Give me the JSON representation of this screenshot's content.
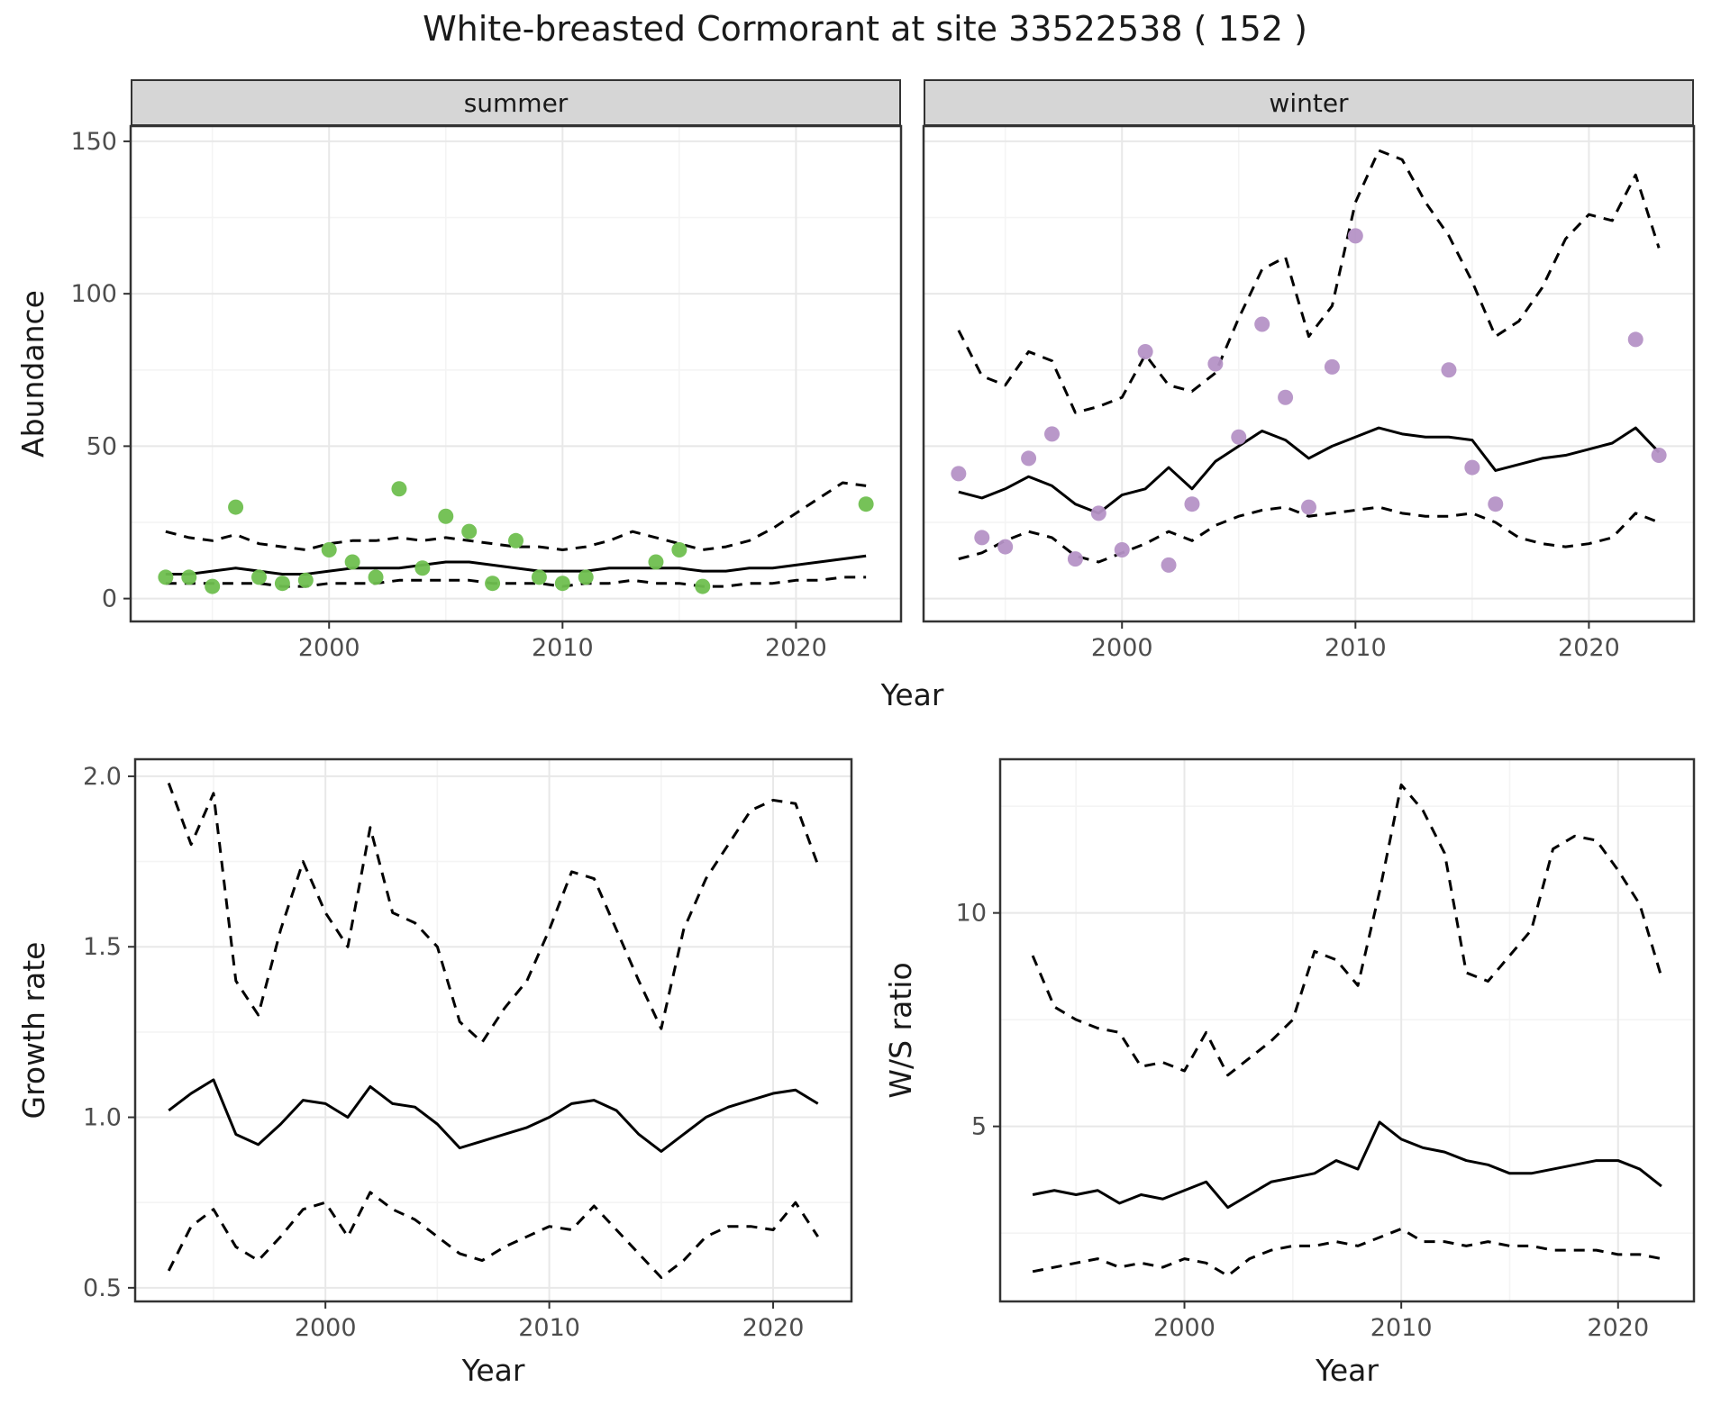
{
  "title": "White-breasted Cormorant at site 33522538 ( 152 )",
  "colors": {
    "summer_points": "#6fbf4f",
    "winter_points": "#b592c6",
    "fit_line": "#000000",
    "ci_line": "#000000",
    "strip_bg": "#d6d6d6",
    "panel_border": "#333333",
    "grid_major": "#e8e8e8",
    "grid_minor": "#f4f4f4",
    "tick_text": "#4d4d4d"
  },
  "chart_data": [
    {
      "id": "abundance-summer",
      "type": "line",
      "facet": "summer",
      "xlabel": "Year",
      "ylabel": "Abundance",
      "xlim": [
        1991.5,
        2024.5
      ],
      "ylim": [
        -7.5,
        155
      ],
      "xticks": [
        2000,
        2010,
        2020
      ],
      "xtick_labels": [
        "2000",
        "2010",
        "2020"
      ],
      "yticks": [
        0,
        50,
        100,
        150
      ],
      "ytick_labels": [
        "0",
        "50",
        "100",
        "150"
      ],
      "legend": "none",
      "grid": "on",
      "points": {
        "color": "#6fbf4f",
        "x": [
          1993,
          1994,
          1995,
          1996,
          1997,
          1998,
          1999,
          2000,
          2001,
          2002,
          2003,
          2004,
          2005,
          2006,
          2007,
          2008,
          2009,
          2010,
          2011,
          2014,
          2015,
          2016,
          2023
        ],
        "y": [
          7,
          7,
          4,
          30,
          7,
          5,
          6,
          16,
          12,
          7,
          36,
          10,
          27,
          22,
          5,
          19,
          7,
          5,
          7,
          12,
          16,
          4,
          31
        ]
      },
      "series": [
        {
          "name": "fit",
          "style": "solid",
          "x": [
            1993,
            1994,
            1995,
            1996,
            1997,
            1998,
            1999,
            2000,
            2001,
            2002,
            2003,
            2004,
            2005,
            2006,
            2007,
            2008,
            2009,
            2010,
            2011,
            2012,
            2013,
            2014,
            2015,
            2016,
            2017,
            2018,
            2019,
            2020,
            2021,
            2022,
            2023
          ],
          "y": [
            8,
            8,
            9,
            10,
            9,
            8,
            8,
            9,
            10,
            10,
            10,
            11,
            12,
            12,
            11,
            10,
            9,
            9,
            9,
            10,
            10,
            10,
            10,
            9,
            9,
            10,
            10,
            11,
            12,
            13,
            14
          ]
        },
        {
          "name": "ci-upper",
          "style": "dashed",
          "x": [
            1993,
            1994,
            1995,
            1996,
            1997,
            1998,
            1999,
            2000,
            2001,
            2002,
            2003,
            2004,
            2005,
            2006,
            2007,
            2008,
            2009,
            2010,
            2011,
            2012,
            2013,
            2014,
            2015,
            2016,
            2017,
            2018,
            2019,
            2020,
            2021,
            2022,
            2023
          ],
          "y": [
            22,
            20,
            19,
            21,
            18,
            17,
            16,
            18,
            19,
            19,
            20,
            19,
            20,
            19,
            18,
            17,
            17,
            16,
            17,
            19,
            22,
            20,
            18,
            16,
            17,
            19,
            23,
            28,
            33,
            38,
            37
          ]
        },
        {
          "name": "ci-lower",
          "style": "dashed",
          "x": [
            1993,
            1994,
            1995,
            1996,
            1997,
            1998,
            1999,
            2000,
            2001,
            2002,
            2003,
            2004,
            2005,
            2006,
            2007,
            2008,
            2009,
            2010,
            2011,
            2012,
            2013,
            2014,
            2015,
            2016,
            2017,
            2018,
            2019,
            2020,
            2021,
            2022,
            2023
          ],
          "y": [
            5,
            5,
            5,
            5,
            5,
            4,
            4,
            5,
            5,
            5,
            6,
            6,
            6,
            6,
            5,
            5,
            5,
            4,
            5,
            5,
            6,
            5,
            5,
            4,
            4,
            5,
            5,
            6,
            6,
            7,
            7
          ]
        }
      ]
    },
    {
      "id": "abundance-winter",
      "type": "line",
      "facet": "winter",
      "xlabel": "Year",
      "ylabel": "Abundance",
      "xlim": [
        1991.5,
        2024.5
      ],
      "ylim": [
        -7.5,
        155
      ],
      "xticks": [
        2000,
        2010,
        2020
      ],
      "xtick_labels": [
        "2000",
        "2010",
        "2020"
      ],
      "yticks": [
        0,
        50,
        100,
        150
      ],
      "ytick_labels": [
        "0",
        "50",
        "100",
        "150"
      ],
      "legend": "none",
      "grid": "on",
      "points": {
        "color": "#b592c6",
        "x": [
          1993,
          1994,
          1995,
          1996,
          1997,
          1998,
          1999,
          2000,
          2001,
          2002,
          2003,
          2004,
          2005,
          2006,
          2007,
          2008,
          2009,
          2010,
          2014,
          2015,
          2016,
          2022,
          2023
        ],
        "y": [
          41,
          20,
          17,
          46,
          54,
          13,
          28,
          16,
          81,
          11,
          31,
          77,
          53,
          90,
          66,
          30,
          76,
          119,
          75,
          43,
          31,
          85,
          47
        ]
      },
      "series": [
        {
          "name": "fit",
          "style": "solid",
          "x": [
            1993,
            1994,
            1995,
            1996,
            1997,
            1998,
            1999,
            2000,
            2001,
            2002,
            2003,
            2004,
            2005,
            2006,
            2007,
            2008,
            2009,
            2010,
            2011,
            2012,
            2013,
            2014,
            2015,
            2016,
            2017,
            2018,
            2019,
            2020,
            2021,
            2022,
            2023
          ],
          "y": [
            35,
            33,
            36,
            40,
            37,
            31,
            28,
            34,
            36,
            43,
            36,
            45,
            50,
            55,
            52,
            46,
            50,
            53,
            56,
            54,
            53,
            53,
            52,
            42,
            44,
            46,
            47,
            49,
            51,
            56,
            48
          ]
        },
        {
          "name": "ci-upper",
          "style": "dashed",
          "x": [
            1993,
            1994,
            1995,
            1996,
            1997,
            1998,
            1999,
            2000,
            2001,
            2002,
            2003,
            2004,
            2005,
            2006,
            2007,
            2008,
            2009,
            2010,
            2011,
            2012,
            2013,
            2014,
            2015,
            2016,
            2017,
            2018,
            2019,
            2020,
            2021,
            2022,
            2023
          ],
          "y": [
            88,
            73,
            70,
            81,
            78,
            61,
            63,
            66,
            80,
            70,
            68,
            74,
            92,
            108,
            112,
            86,
            96,
            130,
            147,
            144,
            130,
            119,
            104,
            86,
            91,
            102,
            118,
            126,
            124,
            139,
            115
          ]
        },
        {
          "name": "ci-lower",
          "style": "dashed",
          "x": [
            1993,
            1994,
            1995,
            1996,
            1997,
            1998,
            1999,
            2000,
            2001,
            2002,
            2003,
            2004,
            2005,
            2006,
            2007,
            2008,
            2009,
            2010,
            2011,
            2012,
            2013,
            2014,
            2015,
            2016,
            2017,
            2018,
            2019,
            2020,
            2021,
            2022,
            2023
          ],
          "y": [
            13,
            15,
            19,
            22,
            20,
            14,
            12,
            15,
            18,
            22,
            19,
            24,
            27,
            29,
            30,
            27,
            28,
            29,
            30,
            28,
            27,
            27,
            28,
            25,
            20,
            18,
            17,
            18,
            20,
            28,
            25
          ]
        }
      ]
    },
    {
      "id": "growth-rate",
      "type": "line",
      "facet": "",
      "xlabel": "Year",
      "ylabel": "Growth rate",
      "xlim": [
        1991.5,
        2023.5
      ],
      "ylim": [
        0.46,
        2.05
      ],
      "xticks": [
        2000,
        2010,
        2020
      ],
      "xtick_labels": [
        "2000",
        "2010",
        "2020"
      ],
      "yticks": [
        0.5,
        1.0,
        1.5,
        2.0
      ],
      "ytick_labels": [
        "0.5",
        "1.0",
        "1.5",
        "2.0"
      ],
      "legend": "none",
      "grid": "on",
      "series": [
        {
          "name": "fit",
          "style": "solid",
          "x": [
            1993,
            1994,
            1995,
            1996,
            1997,
            1998,
            1999,
            2000,
            2001,
            2002,
            2003,
            2004,
            2005,
            2006,
            2007,
            2008,
            2009,
            2010,
            2011,
            2012,
            2013,
            2014,
            2015,
            2016,
            2017,
            2018,
            2019,
            2020,
            2021,
            2022
          ],
          "y": [
            1.02,
            1.07,
            1.11,
            0.95,
            0.92,
            0.98,
            1.05,
            1.04,
            1.0,
            1.09,
            1.04,
            1.03,
            0.98,
            0.91,
            0.93,
            0.95,
            0.97,
            1.0,
            1.04,
            1.05,
            1.02,
            0.95,
            0.9,
            0.95,
            1.0,
            1.03,
            1.05,
            1.07,
            1.08,
            1.04
          ]
        },
        {
          "name": "ci-upper",
          "style": "dashed",
          "x": [
            1993,
            1994,
            1995,
            1996,
            1997,
            1998,
            1999,
            2000,
            2001,
            2002,
            2003,
            2004,
            2005,
            2006,
            2007,
            2008,
            2009,
            2010,
            2011,
            2012,
            2013,
            2014,
            2015,
            2016,
            2017,
            2018,
            2019,
            2020,
            2021,
            2022
          ],
          "y": [
            1.98,
            1.8,
            1.95,
            1.4,
            1.3,
            1.55,
            1.75,
            1.6,
            1.5,
            1.85,
            1.6,
            1.57,
            1.5,
            1.28,
            1.22,
            1.32,
            1.4,
            1.55,
            1.72,
            1.7,
            1.55,
            1.4,
            1.26,
            1.55,
            1.7,
            1.8,
            1.9,
            1.93,
            1.92,
            1.74
          ]
        },
        {
          "name": "ci-lower",
          "style": "dashed",
          "x": [
            1993,
            1994,
            1995,
            1996,
            1997,
            1998,
            1999,
            2000,
            2001,
            2002,
            2003,
            2004,
            2005,
            2006,
            2007,
            2008,
            2009,
            2010,
            2011,
            2012,
            2013,
            2014,
            2015,
            2016,
            2017,
            2018,
            2019,
            2020,
            2021,
            2022
          ],
          "y": [
            0.55,
            0.68,
            0.73,
            0.62,
            0.58,
            0.65,
            0.73,
            0.75,
            0.65,
            0.78,
            0.73,
            0.7,
            0.65,
            0.6,
            0.58,
            0.62,
            0.65,
            0.68,
            0.67,
            0.74,
            0.67,
            0.6,
            0.53,
            0.58,
            0.65,
            0.68,
            0.68,
            0.67,
            0.75,
            0.65
          ]
        }
      ]
    },
    {
      "id": "ws-ratio",
      "type": "line",
      "facet": "",
      "xlabel": "Year",
      "ylabel": "W/S ratio",
      "xlim": [
        1991.5,
        2023.5
      ],
      "ylim": [
        0.9,
        13.6
      ],
      "xticks": [
        2000,
        2010,
        2020
      ],
      "xtick_labels": [
        "2000",
        "2010",
        "2020"
      ],
      "yticks": [
        5,
        10
      ],
      "ytick_labels": [
        "5",
        "10"
      ],
      "legend": "none",
      "grid": "on",
      "series": [
        {
          "name": "fit",
          "style": "solid",
          "x": [
            1993,
            1994,
            1995,
            1996,
            1997,
            1998,
            1999,
            2000,
            2001,
            2002,
            2003,
            2004,
            2005,
            2006,
            2007,
            2008,
            2009,
            2010,
            2011,
            2012,
            2013,
            2014,
            2015,
            2016,
            2017,
            2018,
            2019,
            2020,
            2021,
            2022
          ],
          "y": [
            3.4,
            3.5,
            3.4,
            3.5,
            3.2,
            3.4,
            3.3,
            3.5,
            3.7,
            3.1,
            3.4,
            3.7,
            3.8,
            3.9,
            4.2,
            4.0,
            5.1,
            4.7,
            4.5,
            4.4,
            4.2,
            4.1,
            3.9,
            3.9,
            4.0,
            4.1,
            4.2,
            4.2,
            4.0,
            3.6
          ]
        },
        {
          "name": "ci-upper",
          "style": "dashed",
          "x": [
            1993,
            1994,
            1995,
            1996,
            1997,
            1998,
            1999,
            2000,
            2001,
            2002,
            2003,
            2004,
            2005,
            2006,
            2007,
            2008,
            2009,
            2010,
            2011,
            2012,
            2013,
            2014,
            2015,
            2016,
            2017,
            2018,
            2019,
            2020,
            2021,
            2022
          ],
          "y": [
            9.0,
            7.8,
            7.5,
            7.3,
            7.2,
            6.4,
            6.5,
            6.3,
            7.2,
            6.2,
            6.6,
            7.0,
            7.5,
            9.1,
            8.9,
            8.3,
            10.5,
            13.0,
            12.4,
            11.4,
            8.6,
            8.4,
            9.0,
            9.6,
            11.5,
            11.8,
            11.7,
            11.0,
            10.2,
            8.5
          ]
        },
        {
          "name": "ci-lower",
          "style": "dashed",
          "x": [
            1993,
            1994,
            1995,
            1996,
            1997,
            1998,
            1999,
            2000,
            2001,
            2002,
            2003,
            2004,
            2005,
            2006,
            2007,
            2008,
            2009,
            2010,
            2011,
            2012,
            2013,
            2014,
            2015,
            2016,
            2017,
            2018,
            2019,
            2020,
            2021,
            2022
          ],
          "y": [
            1.6,
            1.7,
            1.8,
            1.9,
            1.7,
            1.8,
            1.7,
            1.9,
            1.8,
            1.5,
            1.9,
            2.1,
            2.2,
            2.2,
            2.3,
            2.2,
            2.4,
            2.6,
            2.3,
            2.3,
            2.2,
            2.3,
            2.2,
            2.2,
            2.1,
            2.1,
            2.1,
            2.0,
            2.0,
            1.9
          ]
        }
      ]
    }
  ]
}
